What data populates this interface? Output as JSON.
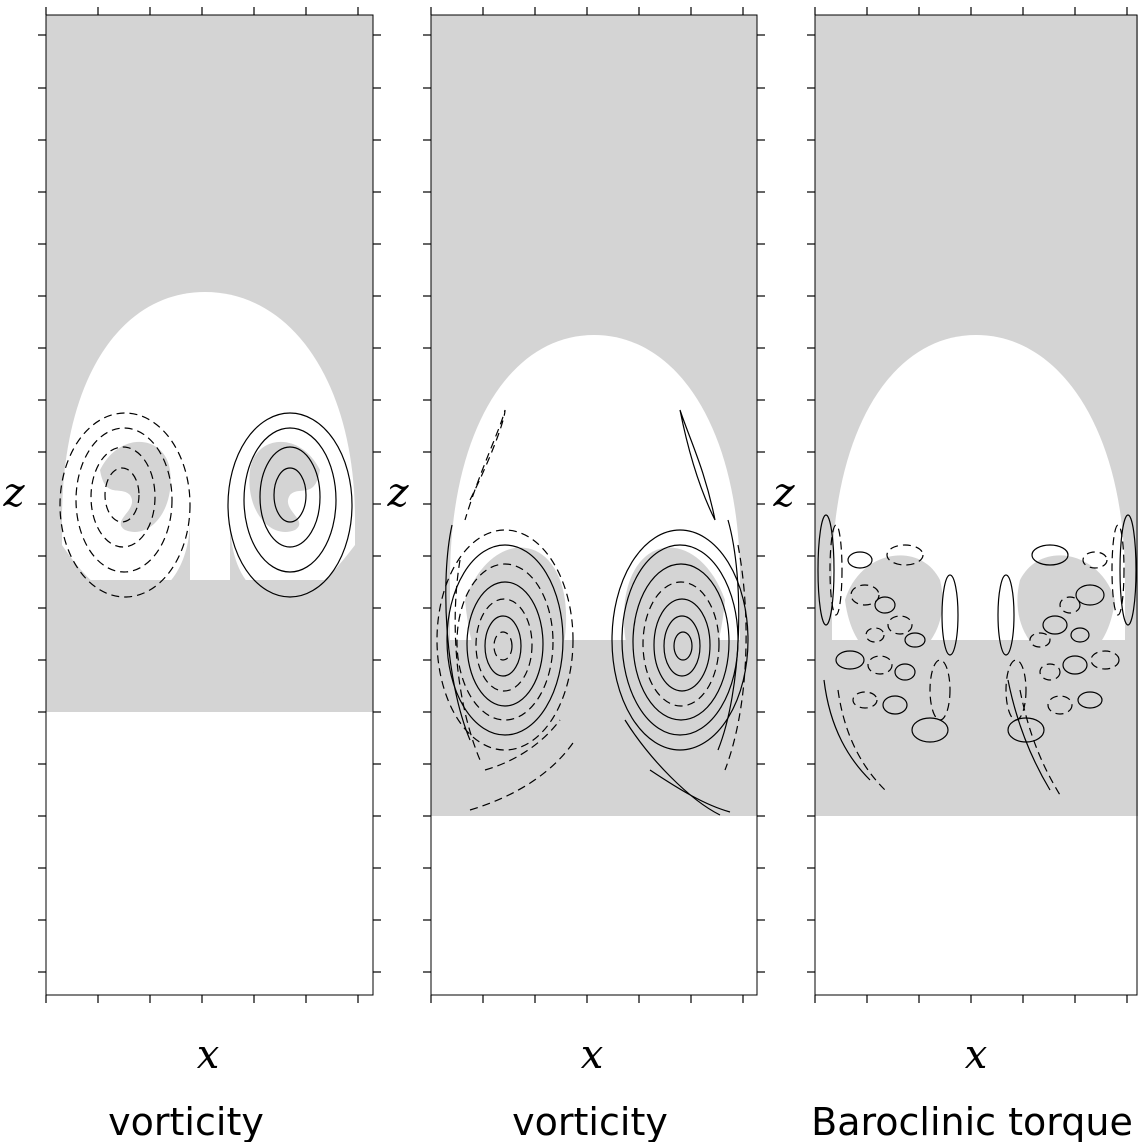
{
  "figure": {
    "panels": [
      {
        "xlabel": "x",
        "zlabel": "z",
        "caption": "vorticity"
      },
      {
        "xlabel": "x",
        "zlabel": "z",
        "caption": "vorticity"
      },
      {
        "xlabel": "x",
        "zlabel": "z",
        "caption": "Baroclinic torque"
      }
    ],
    "colors": {
      "background_fluid": "#d4d4d4",
      "plume_fluid": "#ffffff",
      "contour": "#000000"
    },
    "line_styles": {
      "positive": "solid",
      "negative": "dashed"
    }
  }
}
